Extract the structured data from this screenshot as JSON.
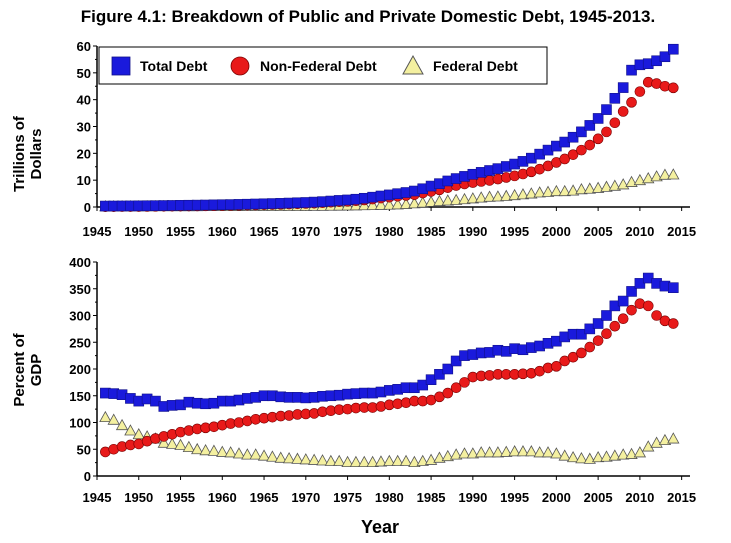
{
  "title": "Figure 4.1: Breakdown of Public and Private Domestic Debt, 1945-2013.",
  "xlabel": "Year",
  "colors": {
    "total": "#1a1adc",
    "nonfederal": "#e81a1a",
    "federal": "#f4f0a0"
  },
  "x_ticks": [
    "1945",
    "1950",
    "1955",
    "1960",
    "1965",
    "1970",
    "1975",
    "1980",
    "1985",
    "1990",
    "1995",
    "2000",
    "2005",
    "2010",
    "2015"
  ],
  "legend": {
    "placement": "top-left",
    "panel": "top"
  },
  "chart_data": [
    {
      "type": "scatter",
      "title": "",
      "ylabel": "Trillions of Dollars",
      "ylabel_lines": [
        "Trillions of",
        "Dollars"
      ],
      "xlim": [
        1945,
        2016
      ],
      "ylim": [
        0,
        60
      ],
      "y_ticks": [
        "0",
        "10",
        "20",
        "30",
        "40",
        "50",
        "60"
      ],
      "grid": false,
      "x": [
        1946,
        1947,
        1948,
        1949,
        1950,
        1951,
        1952,
        1953,
        1954,
        1955,
        1956,
        1957,
        1958,
        1959,
        1960,
        1961,
        1962,
        1963,
        1964,
        1965,
        1966,
        1967,
        1968,
        1969,
        1970,
        1971,
        1972,
        1973,
        1974,
        1975,
        1976,
        1977,
        1978,
        1979,
        1980,
        1981,
        1982,
        1983,
        1984,
        1985,
        1986,
        1987,
        1988,
        1989,
        1990,
        1991,
        1992,
        1993,
        1994,
        1995,
        1996,
        1997,
        1998,
        1999,
        2000,
        2001,
        2002,
        2003,
        2004,
        2005,
        2006,
        2007,
        2008,
        2009,
        2010,
        2011,
        2012,
        2013,
        2014
      ],
      "series": [
        {
          "name": "Total Debt",
          "marker": "square",
          "color": "#1a1adc",
          "values": [
            0.35,
            0.37,
            0.39,
            0.41,
            0.44,
            0.47,
            0.5,
            0.54,
            0.57,
            0.62,
            0.66,
            0.7,
            0.74,
            0.8,
            0.85,
            0.9,
            0.97,
            1.04,
            1.12,
            1.2,
            1.28,
            1.36,
            1.47,
            1.58,
            1.68,
            1.83,
            2.0,
            2.22,
            2.45,
            2.63,
            2.9,
            3.25,
            3.66,
            4.1,
            4.5,
            4.96,
            5.4,
            5.95,
            6.8,
            7.8,
            8.7,
            9.7,
            10.6,
            11.4,
            12.2,
            12.9,
            13.6,
            14.3,
            15.1,
            16.0,
            17.0,
            18.2,
            19.7,
            21.2,
            22.7,
            24.2,
            26.0,
            28.0,
            30.4,
            33.0,
            36.3,
            40.5,
            44.5,
            51.0,
            53.0,
            53.4,
            54.5,
            56.0,
            58.8
          ]
        },
        {
          "name": "Non-Federal Debt",
          "marker": "circle",
          "color": "#e81a1a",
          "values": [
            0.1,
            0.12,
            0.14,
            0.15,
            0.18,
            0.2,
            0.23,
            0.26,
            0.28,
            0.32,
            0.35,
            0.38,
            0.42,
            0.47,
            0.52,
            0.56,
            0.62,
            0.69,
            0.76,
            0.85,
            0.92,
            1.0,
            1.1,
            1.2,
            1.3,
            1.42,
            1.58,
            1.77,
            1.97,
            2.1,
            2.33,
            2.62,
            2.97,
            3.33,
            3.67,
            4.0,
            4.3,
            4.6,
            5.2,
            5.8,
            6.4,
            7.2,
            8.0,
            8.6,
            9.1,
            9.5,
            9.9,
            10.4,
            11.0,
            11.6,
            12.3,
            13.1,
            14.1,
            15.3,
            16.6,
            17.9,
            19.5,
            21.2,
            23.1,
            25.4,
            28.0,
            31.4,
            35.6,
            39.0,
            43.0,
            46.5,
            46.0,
            45.0,
            44.4
          ]
        },
        {
          "name": "Federal Debt",
          "marker": "triangle",
          "color": "#f4f0a0",
          "values": [
            0.26,
            0.26,
            0.25,
            0.26,
            0.26,
            0.26,
            0.27,
            0.28,
            0.29,
            0.3,
            0.3,
            0.3,
            0.32,
            0.33,
            0.33,
            0.34,
            0.35,
            0.36,
            0.36,
            0.37,
            0.37,
            0.38,
            0.38,
            0.37,
            0.38,
            0.41,
            0.43,
            0.46,
            0.48,
            0.53,
            0.58,
            0.64,
            0.7,
            0.77,
            0.83,
            0.96,
            1.1,
            1.35,
            1.6,
            1.9,
            2.2,
            2.4,
            2.6,
            2.9,
            3.2,
            3.5,
            3.8,
            3.9,
            4.1,
            4.4,
            4.7,
            5.0,
            5.4,
            5.6,
            5.9,
            5.9,
            6.1,
            6.6,
            6.8,
            7.1,
            7.5,
            7.9,
            8.4,
            9.3,
            10.0,
            10.7,
            11.4,
            12.0,
            12.1
          ]
        }
      ]
    },
    {
      "type": "scatter",
      "title": "",
      "ylabel": "Percent of GDP",
      "ylabel_lines": [
        "Percent of",
        "GDP"
      ],
      "xlim": [
        1945,
        2016
      ],
      "ylim": [
        0,
        400
      ],
      "y_ticks": [
        "0",
        "50",
        "100",
        "150",
        "200",
        "250",
        "300",
        "350",
        "400"
      ],
      "grid": false,
      "x": [
        1946,
        1947,
        1948,
        1949,
        1950,
        1951,
        1952,
        1953,
        1954,
        1955,
        1956,
        1957,
        1958,
        1959,
        1960,
        1961,
        1962,
        1963,
        1964,
        1965,
        1966,
        1967,
        1968,
        1969,
        1970,
        1971,
        1972,
        1973,
        1974,
        1975,
        1976,
        1977,
        1978,
        1979,
        1980,
        1981,
        1982,
        1983,
        1984,
        1985,
        1986,
        1987,
        1988,
        1989,
        1990,
        1991,
        1992,
        1993,
        1994,
        1995,
        1996,
        1997,
        1998,
        1999,
        2000,
        2001,
        2002,
        2003,
        2004,
        2005,
        2006,
        2007,
        2008,
        2009,
        2010,
        2011,
        2012,
        2013,
        2014
      ],
      "series": [
        {
          "name": "Total Debt",
          "marker": "square",
          "color": "#1a1adc",
          "values": [
            155,
            154,
            152,
            145,
            140,
            144,
            140,
            130,
            132,
            133,
            138,
            136,
            135,
            136,
            140,
            140,
            142,
            145,
            147,
            150,
            150,
            148,
            147,
            147,
            146,
            147,
            149,
            150,
            151,
            153,
            154,
            155,
            155,
            157,
            160,
            162,
            165,
            165,
            170,
            180,
            190,
            200,
            215,
            225,
            227,
            230,
            231,
            235,
            233,
            238,
            236,
            240,
            243,
            248,
            252,
            260,
            265,
            265,
            275,
            285,
            300,
            318,
            327,
            345,
            360,
            370,
            360,
            355,
            352
          ]
        },
        {
          "name": "Non-Federal Debt",
          "marker": "circle",
          "color": "#e81a1a",
          "values": [
            45,
            50,
            55,
            58,
            60,
            65,
            70,
            74,
            78,
            82,
            85,
            88,
            90,
            92,
            95,
            98,
            100,
            103,
            106,
            108,
            110,
            112,
            113,
            115,
            116,
            117,
            120,
            122,
            124,
            125,
            127,
            128,
            128,
            130,
            133,
            135,
            137,
            140,
            140,
            142,
            148,
            155,
            165,
            175,
            185,
            187,
            188,
            190,
            190,
            190,
            191,
            192,
            196,
            202,
            205,
            215,
            222,
            230,
            241,
            253,
            266,
            280,
            294,
            310,
            322,
            318,
            300,
            290,
            285
          ]
        },
        {
          "name": "Federal Debt",
          "marker": "triangle",
          "color": "#f4f0a0",
          "values": [
            110,
            105,
            95,
            85,
            78,
            74,
            70,
            62,
            60,
            58,
            54,
            50,
            48,
            47,
            45,
            44,
            42,
            40,
            40,
            38,
            36,
            34,
            33,
            32,
            31,
            30,
            29,
            28,
            28,
            26,
            26,
            26,
            26,
            27,
            28,
            28,
            28,
            26,
            28,
            30,
            34,
            37,
            40,
            42,
            42,
            44,
            44,
            44,
            45,
            46,
            46,
            46,
            44,
            44,
            42,
            38,
            35,
            33,
            32,
            35,
            36,
            38,
            40,
            41,
            44,
            55,
            62,
            67,
            70
          ]
        }
      ]
    }
  ]
}
